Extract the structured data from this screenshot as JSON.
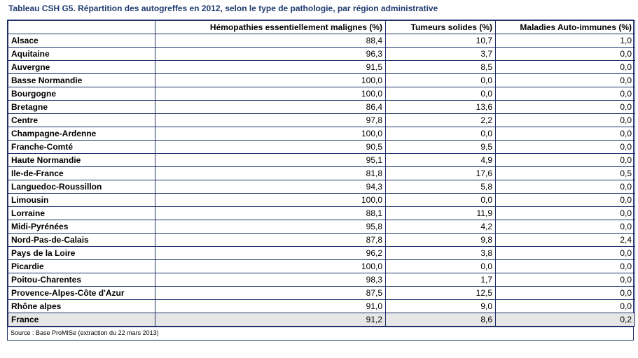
{
  "title": "Tableau CSH G5. Répartition des autogreffes en 2012, selon le type de pathologie, par région administrative",
  "headers": [
    "",
    "Hémopathies essentiellement malignes (%)",
    "Tumeurs solides (%)",
    "Maladies Auto-immunes (%)"
  ],
  "rows": [
    {
      "region": "Alsace",
      "hemo": "88,4",
      "tumeurs": "10,7",
      "auto": "1,0"
    },
    {
      "region": "Aquitaine",
      "hemo": "96,3",
      "tumeurs": "3,7",
      "auto": "0,0"
    },
    {
      "region": "Auvergne",
      "hemo": "91,5",
      "tumeurs": "8,5",
      "auto": "0,0"
    },
    {
      "region": "Basse Normandie",
      "hemo": "100,0",
      "tumeurs": "0,0",
      "auto": "0,0"
    },
    {
      "region": "Bourgogne",
      "hemo": "100,0",
      "tumeurs": "0,0",
      "auto": "0,0"
    },
    {
      "region": "Bretagne",
      "hemo": "86,4",
      "tumeurs": "13,6",
      "auto": "0,0"
    },
    {
      "region": "Centre",
      "hemo": "97,8",
      "tumeurs": "2,2",
      "auto": "0,0"
    },
    {
      "region": "Champagne-Ardenne",
      "hemo": "100,0",
      "tumeurs": "0,0",
      "auto": "0,0"
    },
    {
      "region": "Franche-Comté",
      "hemo": "90,5",
      "tumeurs": "9,5",
      "auto": "0,0"
    },
    {
      "region": "Haute Normandie",
      "hemo": "95,1",
      "tumeurs": "4,9",
      "auto": "0,0"
    },
    {
      "region": "Ile-de-France",
      "hemo": "81,8",
      "tumeurs": "17,6",
      "auto": "0,5"
    },
    {
      "region": "Languedoc-Roussillon",
      "hemo": "94,3",
      "tumeurs": "5,8",
      "auto": "0,0"
    },
    {
      "region": "Limousin",
      "hemo": "100,0",
      "tumeurs": "0,0",
      "auto": "0,0"
    },
    {
      "region": "Lorraine",
      "hemo": "88,1",
      "tumeurs": "11,9",
      "auto": "0,0"
    },
    {
      "region": "Midi-Pyrénées",
      "hemo": "95,8",
      "tumeurs": "4,2",
      "auto": "0,0"
    },
    {
      "region": "Nord-Pas-de-Calais",
      "hemo": "87,8",
      "tumeurs": "9,8",
      "auto": "2,4"
    },
    {
      "region": "Pays de la Loire",
      "hemo": "96,2",
      "tumeurs": "3,8",
      "auto": "0,0"
    },
    {
      "region": "Picardie",
      "hemo": "100,0",
      "tumeurs": "0,0",
      "auto": "0,0"
    },
    {
      "region": "Poitou-Charentes",
      "hemo": "98,3",
      "tumeurs": "1,7",
      "auto": "0,0"
    },
    {
      "region": "Provence-Alpes-Côte d'Azur",
      "hemo": "87,5",
      "tumeurs": "12,5",
      "auto": "0,0"
    },
    {
      "region": "Rhône alpes",
      "hemo": "91,0",
      "tumeurs": "9,0",
      "auto": "0,0"
    }
  ],
  "total": {
    "region": "France",
    "hemo": "91,2",
    "tumeurs": "8,6",
    "auto": "0,2"
  },
  "source": "Source : Base ProMISe (extraction du 22 mars 2013)",
  "colors": {
    "border": "#1f2f6a",
    "title": "#1f3a6e",
    "total_bg": "#e6e6e6"
  }
}
